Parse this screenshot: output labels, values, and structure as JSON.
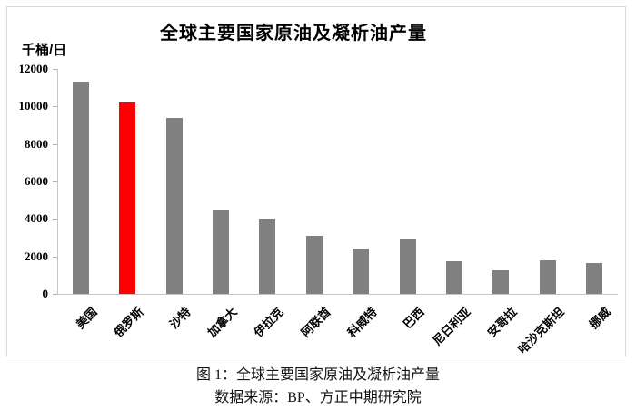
{
  "chart_data": {
    "type": "bar",
    "title": "全球主要国家原油及凝析油产量",
    "unit_label": "千桶/日",
    "categories": [
      "美国",
      "俄罗斯",
      "沙特",
      "加拿大",
      "伊拉克",
      "阿联酋",
      "科威特",
      "巴西",
      "尼日利亚",
      "安哥拉",
      "哈沙克斯坦",
      "挪威"
    ],
    "values": [
      11300,
      10200,
      9400,
      4450,
      4000,
      3080,
      2420,
      2880,
      1720,
      1250,
      1770,
      1660
    ],
    "highlight_index": 1,
    "highlight_category": "俄罗斯",
    "bar_color": "#808080",
    "highlight_color": "#ff0000",
    "xlabel": "",
    "ylabel": "千桶/日",
    "ylim": [
      0,
      12000
    ],
    "yticks": [
      0,
      2000,
      4000,
      6000,
      8000,
      10000,
      12000
    ],
    "grid": false,
    "legend_position": "none"
  },
  "caption": {
    "line1": "图 1：全球主要国家原油及凝析油产量",
    "line2": "数据来源：BP、方正中期研究院"
  },
  "colors": {
    "chart_border": "#d9d9d9",
    "axis_line": "#c6c6c6",
    "tick_mark": "#adadad",
    "text": "#000000"
  }
}
